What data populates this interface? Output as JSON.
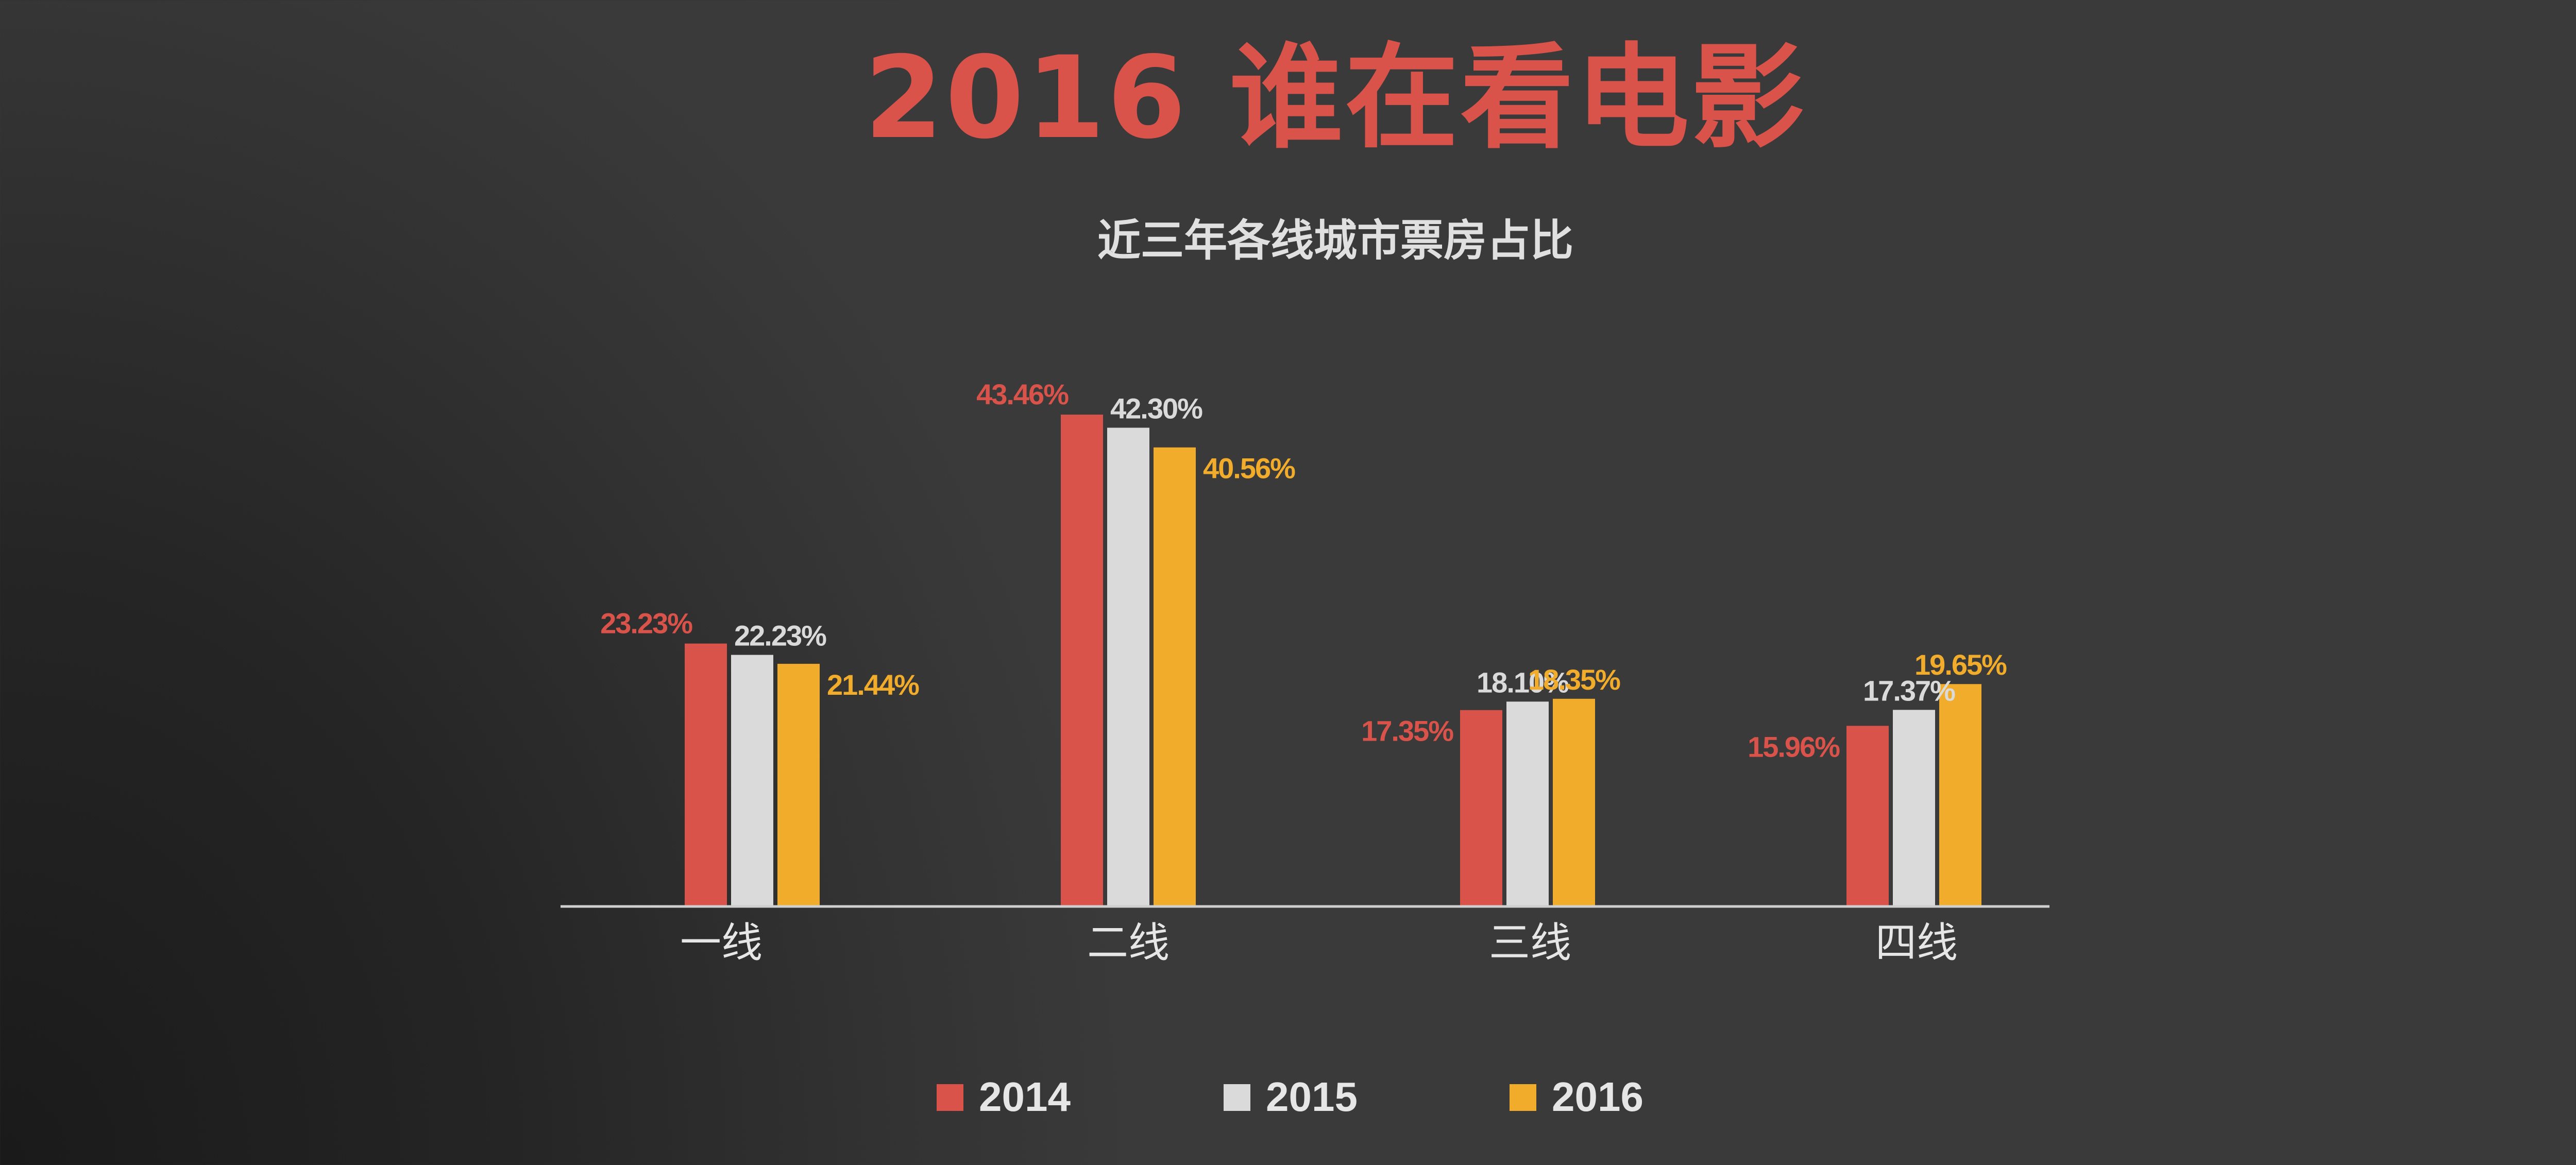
{
  "header": {
    "title": "2016 谁在看电影"
  },
  "colors": {
    "title": "#d9534a",
    "series": [
      "#d9534a",
      "#dadada",
      "#f0ac2a"
    ],
    "axis": "#cfcfcf",
    "text": "#e6e6e6"
  },
  "chart_data": {
    "type": "bar",
    "title": "近三年各线城市票房占比",
    "categories": [
      "一线",
      "二线",
      "三线",
      "四线"
    ],
    "series": [
      {
        "name": "2014",
        "values": [
          23.23,
          43.46,
          17.35,
          15.96
        ],
        "labels": [
          "23.23%",
          "43.46%",
          "17.35%",
          "15.96%"
        ]
      },
      {
        "name": "2015",
        "values": [
          22.23,
          42.3,
          18.1,
          17.37
        ],
        "labels": [
          "22.23%",
          "42.30%",
          "18.10%",
          "17.37%"
        ]
      },
      {
        "name": "2016",
        "values": [
          21.44,
          40.56,
          18.35,
          19.65
        ],
        "labels": [
          "21.44%",
          "40.56%",
          "18.35%",
          "19.65%"
        ]
      }
    ],
    "xlabel": "",
    "ylabel": "",
    "ylim": [
      0,
      45
    ],
    "legend": [
      "2014",
      "2015",
      "2016"
    ],
    "legend_position": "bottom-center",
    "grid": false
  }
}
